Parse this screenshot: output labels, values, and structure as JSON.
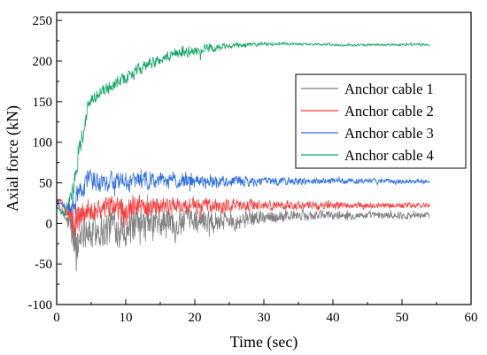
{
  "chart_data": {
    "type": "line",
    "xlabel": "Time (sec)",
    "ylabel": "Axial force (kN)",
    "xlim": [
      0,
      60
    ],
    "ylim": [
      -100,
      260
    ],
    "xticks": [
      0,
      10,
      20,
      30,
      40,
      50,
      60
    ],
    "yticks": [
      -100,
      -50,
      0,
      50,
      100,
      150,
      200,
      250
    ],
    "grid": false,
    "legend_position": "upper-right",
    "series": [
      {
        "name": "Anchor cable 1",
        "color": "#808080",
        "x": [
          0,
          0.5,
          1,
          1.5,
          2,
          2.5,
          3,
          3.5,
          4,
          5,
          6,
          7,
          8,
          9,
          10,
          12,
          14,
          16,
          18,
          20,
          22,
          25,
          28,
          30,
          35,
          40,
          45,
          50,
          54
        ],
        "y": [
          25,
          18,
          10,
          3,
          -5,
          -18,
          -35,
          -10,
          0,
          -15,
          -5,
          -10,
          0,
          -5,
          -5,
          -5,
          0,
          0,
          0,
          5,
          5,
          5,
          5,
          8,
          10,
          10,
          10,
          10,
          10
        ],
        "amplitude": [
          4,
          5,
          8,
          12,
          35,
          45,
          45,
          35,
          30,
          30,
          30,
          30,
          30,
          30,
          30,
          30,
          30,
          28,
          25,
          22,
          20,
          17,
          14,
          12,
          9,
          7,
          6,
          6,
          5
        ]
      },
      {
        "name": "Anchor cable 2",
        "color": "#ff3b3b",
        "x": [
          0,
          0.5,
          1,
          1.5,
          2,
          2.5,
          3,
          3.5,
          4,
          5,
          6,
          7,
          8,
          9,
          10,
          12,
          14,
          16,
          18,
          20,
          22,
          25,
          28,
          30,
          35,
          40,
          45,
          50,
          54
        ],
        "y": [
          30,
          28,
          22,
          15,
          10,
          5,
          0,
          10,
          15,
          18,
          18,
          20,
          20,
          20,
          20,
          22,
          22,
          22,
          22,
          22,
          22,
          22,
          22,
          22,
          22,
          22,
          22,
          22,
          22
        ],
        "amplitude": [
          3,
          4,
          6,
          10,
          22,
          30,
          30,
          25,
          20,
          18,
          18,
          18,
          18,
          18,
          18,
          16,
          15,
          14,
          13,
          12,
          12,
          11,
          10,
          9,
          7,
          6,
          5,
          5,
          4
        ]
      },
      {
        "name": "Anchor cable 3",
        "color": "#2f6fe0",
        "x": [
          0,
          0.5,
          1,
          1.5,
          2,
          2.5,
          3,
          3.5,
          4,
          5,
          6,
          7,
          8,
          9,
          10,
          12,
          14,
          16,
          18,
          20,
          22,
          25,
          28,
          30,
          35,
          40,
          45,
          50,
          54
        ],
        "y": [
          30,
          25,
          20,
          18,
          20,
          25,
          30,
          40,
          50,
          52,
          52,
          52,
          52,
          52,
          52,
          52,
          52,
          52,
          52,
          52,
          52,
          52,
          52,
          52,
          52,
          52,
          52,
          52,
          52
        ],
        "amplitude": [
          3,
          4,
          6,
          10,
          20,
          25,
          25,
          20,
          18,
          17,
          16,
          16,
          16,
          15,
          15,
          15,
          14,
          13,
          12,
          11,
          10,
          9,
          8,
          7,
          6,
          5,
          4,
          4,
          3
        ]
      },
      {
        "name": "Anchor cable 4",
        "color": "#14a868",
        "x": [
          0,
          0.5,
          1,
          1.5,
          2,
          2.5,
          3,
          3.5,
          4,
          4.5,
          5,
          6,
          7,
          8,
          9,
          10,
          11,
          12,
          14,
          16,
          18,
          20,
          22,
          24,
          26,
          28,
          30,
          35,
          40,
          45,
          50,
          54
        ],
        "y": [
          20,
          15,
          10,
          15,
          30,
          50,
          80,
          100,
          120,
          140,
          155,
          160,
          165,
          170,
          175,
          180,
          185,
          190,
          198,
          205,
          210,
          212,
          215,
          217,
          219,
          220,
          221,
          221,
          220,
          220,
          220,
          220
        ],
        "amplitude": [
          3,
          4,
          5,
          8,
          12,
          15,
          18,
          18,
          16,
          14,
          12,
          10,
          10,
          10,
          10,
          10,
          10,
          10,
          9,
          9,
          8,
          8,
          7,
          6,
          5,
          4,
          3,
          2,
          2,
          2,
          2,
          2
        ]
      }
    ]
  }
}
